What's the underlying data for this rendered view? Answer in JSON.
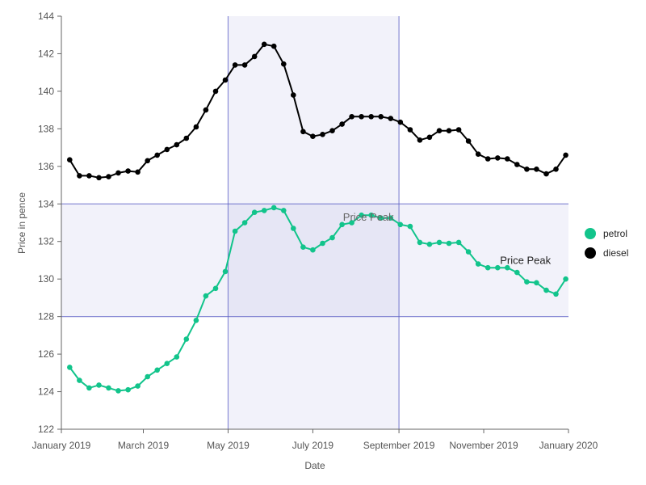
{
  "chart_data": {
    "type": "line",
    "xlabel": "Date",
    "ylabel": "Price in pence",
    "ylim": [
      122,
      144
    ],
    "y_ticks": [
      "122",
      "124",
      "126",
      "128",
      "130",
      "132",
      "134",
      "136",
      "138",
      "140",
      "142",
      "144"
    ],
    "x_range": [
      "2019-01-01",
      "2020-01-01"
    ],
    "x_ticks": [
      {
        "date": "2019-01-01",
        "label": "January 2019"
      },
      {
        "date": "2019-03-01",
        "label": "March 2019"
      },
      {
        "date": "2019-05-01",
        "label": "May 2019"
      },
      {
        "date": "2019-07-01",
        "label": "July 2019"
      },
      {
        "date": "2019-09-01",
        "label": "September 2019"
      },
      {
        "date": "2019-11-01",
        "label": "November 2019"
      },
      {
        "date": "2020-01-01",
        "label": "January 2020"
      }
    ],
    "grid": false,
    "legend_position": "right",
    "bands": [
      {
        "axis": "x",
        "from": "2019-05-01",
        "to": "2019-09-01",
        "color": "#5c5fc4"
      },
      {
        "axis": "y",
        "from": 128,
        "to": 134,
        "color": "#5c5fc4"
      }
    ],
    "annotations": [
      {
        "text": "Price Peak",
        "x": "2019-08-10",
        "y": 133.1,
        "color": "#666666"
      },
      {
        "text": "Price Peak",
        "x": "2019-12-01",
        "y": 130.8,
        "color": "#222222"
      }
    ],
    "series": [
      {
        "name": "petrol",
        "color": "#12c48b",
        "points": [
          [
            "2019-01-07",
            125.3
          ],
          [
            "2019-01-14",
            124.6
          ],
          [
            "2019-01-21",
            124.2
          ],
          [
            "2019-01-28",
            124.35
          ],
          [
            "2019-02-04",
            124.2
          ],
          [
            "2019-02-11",
            124.05
          ],
          [
            "2019-02-18",
            124.1
          ],
          [
            "2019-02-25",
            124.3
          ],
          [
            "2019-03-04",
            124.8
          ],
          [
            "2019-03-11",
            125.15
          ],
          [
            "2019-03-18",
            125.5
          ],
          [
            "2019-03-25",
            125.85
          ],
          [
            "2019-04-01",
            126.8
          ],
          [
            "2019-04-08",
            127.8
          ],
          [
            "2019-04-15",
            129.1
          ],
          [
            "2019-04-22",
            129.5
          ],
          [
            "2019-04-29",
            130.4
          ],
          [
            "2019-05-06",
            132.55
          ],
          [
            "2019-05-13",
            133.0
          ],
          [
            "2019-05-20",
            133.55
          ],
          [
            "2019-05-27",
            133.65
          ],
          [
            "2019-06-03",
            133.8
          ],
          [
            "2019-06-10",
            133.65
          ],
          [
            "2019-06-17",
            132.7
          ],
          [
            "2019-06-24",
            131.7
          ],
          [
            "2019-07-01",
            131.55
          ],
          [
            "2019-07-08",
            131.9
          ],
          [
            "2019-07-15",
            132.2
          ],
          [
            "2019-07-22",
            132.9
          ],
          [
            "2019-07-29",
            133.0
          ],
          [
            "2019-08-05",
            133.4
          ],
          [
            "2019-08-12",
            133.4
          ],
          [
            "2019-08-19",
            133.25
          ],
          [
            "2019-08-26",
            133.25
          ],
          [
            "2019-09-02",
            132.9
          ],
          [
            "2019-09-09",
            132.8
          ],
          [
            "2019-09-16",
            131.95
          ],
          [
            "2019-09-23",
            131.85
          ],
          [
            "2019-09-30",
            131.95
          ],
          [
            "2019-10-07",
            131.9
          ],
          [
            "2019-10-14",
            131.95
          ],
          [
            "2019-10-21",
            131.45
          ],
          [
            "2019-10-28",
            130.8
          ],
          [
            "2019-11-04",
            130.6
          ],
          [
            "2019-11-11",
            130.6
          ],
          [
            "2019-11-18",
            130.6
          ],
          [
            "2019-11-25",
            130.35
          ],
          [
            "2019-12-02",
            129.85
          ],
          [
            "2019-12-09",
            129.8
          ],
          [
            "2019-12-16",
            129.4
          ],
          [
            "2019-12-23",
            129.2
          ],
          [
            "2019-12-30",
            130.0
          ]
        ]
      },
      {
        "name": "diesel",
        "color": "#000000",
        "points": [
          [
            "2019-01-07",
            136.35
          ],
          [
            "2019-01-14",
            135.5
          ],
          [
            "2019-01-21",
            135.5
          ],
          [
            "2019-01-28",
            135.4
          ],
          [
            "2019-02-04",
            135.45
          ],
          [
            "2019-02-11",
            135.65
          ],
          [
            "2019-02-18",
            135.75
          ],
          [
            "2019-02-25",
            135.7
          ],
          [
            "2019-03-04",
            136.3
          ],
          [
            "2019-03-11",
            136.6
          ],
          [
            "2019-03-18",
            136.9
          ],
          [
            "2019-03-25",
            137.15
          ],
          [
            "2019-04-01",
            137.5
          ],
          [
            "2019-04-08",
            138.1
          ],
          [
            "2019-04-15",
            139.0
          ],
          [
            "2019-04-22",
            140.0
          ],
          [
            "2019-04-29",
            140.6
          ],
          [
            "2019-05-06",
            141.4
          ],
          [
            "2019-05-13",
            141.4
          ],
          [
            "2019-05-20",
            141.85
          ],
          [
            "2019-05-27",
            142.5
          ],
          [
            "2019-06-03",
            142.4
          ],
          [
            "2019-06-10",
            141.45
          ],
          [
            "2019-06-17",
            139.8
          ],
          [
            "2019-06-24",
            137.85
          ],
          [
            "2019-07-01",
            137.6
          ],
          [
            "2019-07-08",
            137.7
          ],
          [
            "2019-07-15",
            137.9
          ],
          [
            "2019-07-22",
            138.25
          ],
          [
            "2019-07-29",
            138.65
          ],
          [
            "2019-08-05",
            138.65
          ],
          [
            "2019-08-12",
            138.65
          ],
          [
            "2019-08-19",
            138.65
          ],
          [
            "2019-08-26",
            138.55
          ],
          [
            "2019-09-02",
            138.35
          ],
          [
            "2019-09-09",
            137.95
          ],
          [
            "2019-09-16",
            137.4
          ],
          [
            "2019-09-23",
            137.55
          ],
          [
            "2019-09-30",
            137.9
          ],
          [
            "2019-10-07",
            137.9
          ],
          [
            "2019-10-14",
            137.95
          ],
          [
            "2019-10-21",
            137.35
          ],
          [
            "2019-10-28",
            136.65
          ],
          [
            "2019-11-04",
            136.4
          ],
          [
            "2019-11-11",
            136.45
          ],
          [
            "2019-11-18",
            136.4
          ],
          [
            "2019-11-25",
            136.1
          ],
          [
            "2019-12-02",
            135.85
          ],
          [
            "2019-12-09",
            135.85
          ],
          [
            "2019-12-16",
            135.6
          ],
          [
            "2019-12-23",
            135.85
          ],
          [
            "2019-12-30",
            136.6
          ]
        ]
      }
    ]
  }
}
